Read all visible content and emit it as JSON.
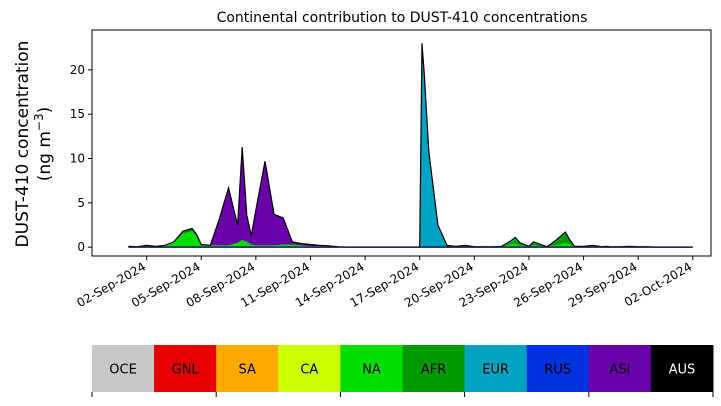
{
  "chart_data": {
    "type": "area",
    "title": "Continental contribution to DUST-410 concentrations",
    "ylabel_line1": "DUST-410 concentration",
    "ylabel_line2": "(ng m",
    "ylabel_exp": "−3",
    "ylabel_close": ")",
    "xlabel": "",
    "ylim": [
      -1,
      24.5
    ],
    "yticks": [
      0,
      5,
      10,
      15,
      20
    ],
    "x_start": "2024-08-30",
    "x_end": "2024-10-03",
    "xtick_dates": [
      "2024-09-02",
      "2024-09-05",
      "2024-09-08",
      "2024-09-11",
      "2024-09-14",
      "2024-09-17",
      "2024-09-20",
      "2024-09-23",
      "2024-09-26",
      "2024-09-29",
      "2024-10-02"
    ],
    "xtick_labels": [
      "02-Sep-2024",
      "05-Sep-2024",
      "08-Sep-2024",
      "11-Sep-2024",
      "14-Sep-2024",
      "17-Sep-2024",
      "20-Sep-2024",
      "23-Sep-2024",
      "26-Sep-2024",
      "29-Sep-2024",
      "02-Oct-2024"
    ],
    "stacked": true,
    "grid": false,
    "x": [
      "2024-09-01",
      "2024-09-01 12:00",
      "2024-09-02",
      "2024-09-02 12:00",
      "2024-09-03",
      "2024-09-03 12:00",
      "2024-09-04",
      "2024-09-04 12:00",
      "2024-09-04 18:00",
      "2024-09-05",
      "2024-09-05 12:00",
      "2024-09-06",
      "2024-09-06 12:00",
      "2024-09-07",
      "2024-09-07 06:00",
      "2024-09-07 12:00",
      "2024-09-07 18:00",
      "2024-09-08",
      "2024-09-08 12:00",
      "2024-09-09",
      "2024-09-09 12:00",
      "2024-09-10",
      "2024-09-10 12:00",
      "2024-09-11",
      "2024-09-11 12:00",
      "2024-09-12",
      "2024-09-12 12:00",
      "2024-09-13",
      "2024-09-14",
      "2024-09-15",
      "2024-09-16",
      "2024-09-16 12:00",
      "2024-09-16 18:00",
      "2024-09-17",
      "2024-09-17 03:00",
      "2024-09-17 06:00",
      "2024-09-17 12:00",
      "2024-09-18",
      "2024-09-18 12:00",
      "2024-09-19",
      "2024-09-19 12:00",
      "2024-09-20",
      "2024-09-21",
      "2024-09-21 12:00",
      "2024-09-22",
      "2024-09-22 06:00",
      "2024-09-22 12:00",
      "2024-09-23",
      "2024-09-23 06:00",
      "2024-09-23 12:00",
      "2024-09-24",
      "2024-09-24 12:00",
      "2024-09-25",
      "2024-09-25 06:00",
      "2024-09-25 12:00",
      "2024-09-26",
      "2024-09-26 12:00",
      "2024-09-27",
      "2024-09-27 06:00",
      "2024-09-27 12:00",
      "2024-09-28",
      "2024-09-28 12:00",
      "2024-09-29",
      "2024-09-29 12:00",
      "2024-09-30",
      "2024-10-01",
      "2024-10-02"
    ],
    "series": [
      {
        "name": "NA",
        "color": "#00dd00",
        "values": [
          0.1,
          0.05,
          0.2,
          0.1,
          0.2,
          0.5,
          1.5,
          1.8,
          1.2,
          0.3,
          0.2,
          0.2,
          0.2,
          0.5,
          0.8,
          0.6,
          0.3,
          0.2,
          0.2,
          0.2,
          0.3,
          0.3,
          0.2,
          0.1,
          0.1,
          0.1,
          0.05,
          0,
          0,
          0,
          0,
          0,
          0,
          0,
          0,
          0,
          0,
          0,
          0,
          0.1,
          0.2,
          0.05,
          0.05,
          0.1,
          0.3,
          0.4,
          0.2,
          0.1,
          0.2,
          0.1,
          0.05,
          0.2,
          0.5,
          0.3,
          0.1,
          0.1,
          0.1,
          0.05,
          0.1,
          0.05,
          0.05,
          0.1,
          0.05,
          0.05,
          0,
          0,
          0
        ]
      },
      {
        "name": "AFR",
        "color": "#009900",
        "values": [
          0,
          0,
          0,
          0,
          0,
          0.1,
          0.3,
          0.3,
          0.2,
          0,
          0,
          0,
          0,
          0,
          0,
          0,
          0,
          0,
          0,
          0,
          0,
          0,
          0,
          0,
          0,
          0,
          0,
          0,
          0,
          0,
          0,
          0,
          0,
          0,
          0,
          0,
          0,
          0,
          0,
          0,
          0,
          0,
          0,
          0,
          0.2,
          0.5,
          0.2,
          0,
          0.3,
          0.2,
          0,
          0.5,
          1.0,
          0.4,
          0,
          0,
          0.1,
          0,
          0,
          0,
          0,
          0,
          0,
          0,
          0,
          0,
          0
        ]
      },
      {
        "name": "EUR",
        "color": "#00a4c0",
        "values": [
          0,
          0,
          0,
          0,
          0,
          0,
          0,
          0,
          0,
          0,
          0,
          0,
          0,
          0,
          0,
          0,
          0,
          0,
          0,
          0,
          0,
          0,
          0,
          0,
          0,
          0,
          0,
          0,
          0,
          0,
          0,
          0,
          0,
          0,
          21.5,
          19.0,
          10.3,
          2.5,
          0.2,
          0,
          0,
          0,
          0,
          0,
          0.2,
          0.2,
          0.1,
          0,
          0.1,
          0.1,
          0,
          0.1,
          0.2,
          0.1,
          0,
          0,
          0,
          0,
          0,
          0,
          0,
          0,
          0,
          0,
          0,
          0,
          0
        ]
      },
      {
        "name": "ASI",
        "color": "#6a00a8",
        "values": [
          0,
          0,
          0,
          0,
          0,
          0,
          0,
          0,
          0,
          0,
          0,
          3.0,
          6.5,
          2.0,
          10.5,
          3.0,
          1.0,
          4.0,
          9.5,
          3.5,
          3.0,
          0.3,
          0.2,
          0.2,
          0.1,
          0.05,
          0,
          0,
          0,
          0,
          0,
          0,
          0,
          0,
          0,
          0,
          0,
          0,
          0,
          0,
          0,
          0,
          0,
          0,
          0,
          0,
          0,
          0,
          0,
          0,
          0,
          0,
          0,
          0,
          0,
          0,
          0,
          0,
          0,
          0,
          0,
          0,
          0,
          0,
          0,
          0,
          0
        ]
      },
      {
        "name": "AUS",
        "color": "#000000",
        "values": [
          0,
          0,
          0,
          0,
          0,
          0,
          0,
          0,
          0,
          0,
          0,
          0,
          0,
          0,
          0,
          0,
          0,
          0,
          0,
          0,
          0,
          0,
          0,
          0,
          0,
          0,
          0,
          0,
          0,
          0,
          0,
          0,
          0,
          0,
          1.5,
          0.5,
          0.5,
          0,
          0,
          0,
          0,
          0,
          0,
          0,
          0,
          0,
          0,
          0,
          0,
          0,
          0,
          0,
          0,
          0,
          0,
          0,
          0,
          0,
          0,
          0,
          0,
          0,
          0,
          0,
          0,
          0,
          0
        ]
      }
    ],
    "legend": {
      "placement": "bottom",
      "entries": [
        {
          "label": "OCE",
          "color": "#c8c8c8",
          "text_color": "#000000"
        },
        {
          "label": "GNL",
          "color": "#e60000",
          "text_color": "#000000"
        },
        {
          "label": "SA",
          "color": "#ffaa00",
          "text_color": "#000000"
        },
        {
          "label": "CA",
          "color": "#ccff00",
          "text_color": "#000000"
        },
        {
          "label": "NA",
          "color": "#00dd00",
          "text_color": "#000000"
        },
        {
          "label": "AFR",
          "color": "#009900",
          "text_color": "#000000"
        },
        {
          "label": "EUR",
          "color": "#00a4c0",
          "text_color": "#000000"
        },
        {
          "label": "RUS",
          "color": "#0033dd",
          "text_color": "#000000"
        },
        {
          "label": "ASI",
          "color": "#6a00a8",
          "text_color": "#000000"
        },
        {
          "label": "AUS",
          "color": "#000000",
          "text_color": "#ffffff"
        }
      ]
    }
  }
}
